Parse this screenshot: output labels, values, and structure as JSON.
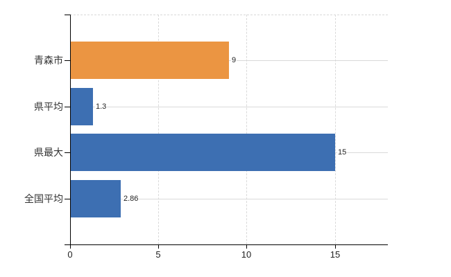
{
  "chart_data": {
    "type": "bar",
    "orientation": "horizontal",
    "title": "",
    "xlabel": "",
    "ylabel": "",
    "categories": [
      "青森市",
      "県平均",
      "県最大",
      "全国平均"
    ],
    "values": [
      9,
      1.3,
      15,
      2.86
    ],
    "value_labels": [
      "9",
      "1.3",
      "15",
      "2.86"
    ],
    "bar_colors": [
      "#EB9542",
      "#3D6FB2",
      "#3D6FB2",
      "#3D6FB2"
    ],
    "xlim": [
      0,
      18
    ],
    "x_ticks": [
      0,
      5,
      10,
      15
    ],
    "grid": true,
    "legend_position": "none",
    "colors": {
      "grid": "#D9D9D9",
      "axis": "#000000",
      "text": "#333333",
      "background": "#FFFFFF"
    }
  }
}
